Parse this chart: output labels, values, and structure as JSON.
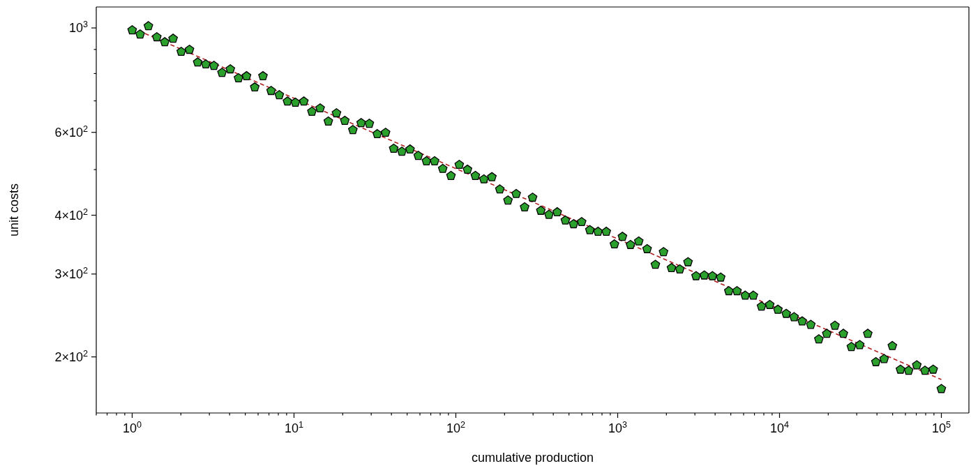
{
  "chart_data": {
    "type": "scatter",
    "xlabel": "cumulative production",
    "ylabel": "unit costs",
    "log": "xy",
    "xlim": [
      0.6,
      148000
    ],
    "ylim": [
      152,
      1108
    ],
    "xticks": [
      {
        "value": 0.6,
        "label": null
      },
      {
        "value": 0.7,
        "label": null
      },
      {
        "value": 0.8,
        "label": null
      },
      {
        "value": 0.9,
        "label": null
      },
      {
        "value": 1,
        "label": "10$^{0}$"
      },
      {
        "value": 2,
        "label": null
      },
      {
        "value": 3,
        "label": null
      },
      {
        "value": 4,
        "label": null
      },
      {
        "value": 5,
        "label": null
      },
      {
        "value": 6,
        "label": null
      },
      {
        "value": 7,
        "label": null
      },
      {
        "value": 8,
        "label": null
      },
      {
        "value": 9,
        "label": null
      },
      {
        "value": 10,
        "label": "10$^{1}$"
      },
      {
        "value": 20,
        "label": null
      },
      {
        "value": 30,
        "label": null
      },
      {
        "value": 40,
        "label": null
      },
      {
        "value": 50,
        "label": null
      },
      {
        "value": 60,
        "label": null
      },
      {
        "value": 70,
        "label": null
      },
      {
        "value": 80,
        "label": null
      },
      {
        "value": 90,
        "label": null
      },
      {
        "value": 100,
        "label": "10$^{2}$"
      },
      {
        "value": 200,
        "label": null
      },
      {
        "value": 300,
        "label": null
      },
      {
        "value": 400,
        "label": null
      },
      {
        "value": 500,
        "label": null
      },
      {
        "value": 600,
        "label": null
      },
      {
        "value": 700,
        "label": null
      },
      {
        "value": 800,
        "label": null
      },
      {
        "value": 900,
        "label": null
      },
      {
        "value": 1000,
        "label": "10$^{3}$"
      },
      {
        "value": 2000,
        "label": null
      },
      {
        "value": 3000,
        "label": null
      },
      {
        "value": 4000,
        "label": null
      },
      {
        "value": 5000,
        "label": null
      },
      {
        "value": 6000,
        "label": null
      },
      {
        "value": 7000,
        "label": null
      },
      {
        "value": 8000,
        "label": null
      },
      {
        "value": 9000,
        "label": null
      },
      {
        "value": 10000,
        "label": "10$^{4}$"
      },
      {
        "value": 20000,
        "label": null
      },
      {
        "value": 30000,
        "label": null
      },
      {
        "value": 40000,
        "label": null
      },
      {
        "value": 50000,
        "label": null
      },
      {
        "value": 60000,
        "label": null
      },
      {
        "value": 70000,
        "label": null
      },
      {
        "value": 80000,
        "label": null
      },
      {
        "value": 90000,
        "label": null
      },
      {
        "value": 100000,
        "label": "10$^{5}$"
      }
    ],
    "yticks": [
      {
        "value": 200,
        "label": "2×10$^{2}$"
      },
      {
        "value": 300,
        "label": "3×10$^{2}$"
      },
      {
        "value": 400,
        "label": "4×10$^{2}$"
      },
      {
        "value": 500,
        "label": null
      },
      {
        "value": 600,
        "label": "6×10$^{2}$"
      },
      {
        "value": 700,
        "label": null
      },
      {
        "value": 800,
        "label": null
      },
      {
        "value": 900,
        "label": null
      },
      {
        "value": 1000,
        "label": "10$^{3}$"
      }
    ],
    "series": [
      {
        "color": "#2ca02c",
        "x": [
          1,
          1.12,
          1.26,
          1.42,
          1.59,
          1.79,
          2.01,
          2.26,
          2.54,
          2.85,
          3.2,
          3.59,
          4.04,
          4.54,
          5.09,
          5.72,
          6.43,
          7.22,
          8.11,
          9.11,
          10.2,
          11.5,
          12.9,
          14.5,
          16.3,
          18.3,
          20.6,
          23.1,
          26,
          29.2,
          32.7,
          36.8,
          41.3,
          46.4,
          52.1,
          58.6,
          65.8,
          73.9,
          83,
          93.3,
          105,
          118,
          132,
          149,
          167,
          187,
          210,
          236,
          266,
          298,
          335,
          376,
          423,
          475,
          534,
          599,
          673,
          756,
          850,
          955,
          1070,
          1200,
          1350,
          1520,
          1710,
          1920,
          2150,
          2420,
          2720,
          3050,
          3430,
          3850,
          4330,
          4860,
          5460,
          6140,
          6890,
          7740,
          8700,
          9770,
          11000,
          12300,
          13800,
          15600,
          17500,
          19600,
          22000,
          24800,
          27800,
          31300,
          35100,
          39400,
          44300,
          49800,
          55900,
          62800,
          70500,
          79200,
          89000,
          100000
        ],
        "values": [
          989,
          969,
          1009,
          956,
          933,
          949,
          890,
          899,
          845,
          837,
          831,
          803,
          817,
          782,
          790,
          748,
          790,
          735,
          720,
          698,
          694,
          698,
          664,
          675,
          633,
          659,
          635,
          607,
          628,
          626,
          595,
          599,
          554,
          546,
          552,
          535,
          521,
          521,
          502,
          485,
          512,
          500,
          485,
          477,
          482,
          454,
          430,
          444,
          416,
          436,
          409,
          401,
          406,
          390,
          383,
          387,
          372,
          369,
          369,
          347,
          360,
          346,
          352,
          339,
          314,
          334,
          309,
          307,
          318,
          297,
          298,
          297,
          295,
          276,
          276,
          270,
          270,
          256,
          258,
          252,
          247,
          243,
          238,
          234,
          218,
          224,
          233,
          224,
          210,
          212,
          224,
          195,
          198,
          211,
          188,
          187,
          192,
          187,
          188,
          171
        ]
      },
      {
        "type": "line",
        "color": "#b22222",
        "line_style": "dashed",
        "marker": "none",
        "x": [
          1,
          100000
        ],
        "values": [
          1000,
          179
        ]
      }
    ]
  }
}
